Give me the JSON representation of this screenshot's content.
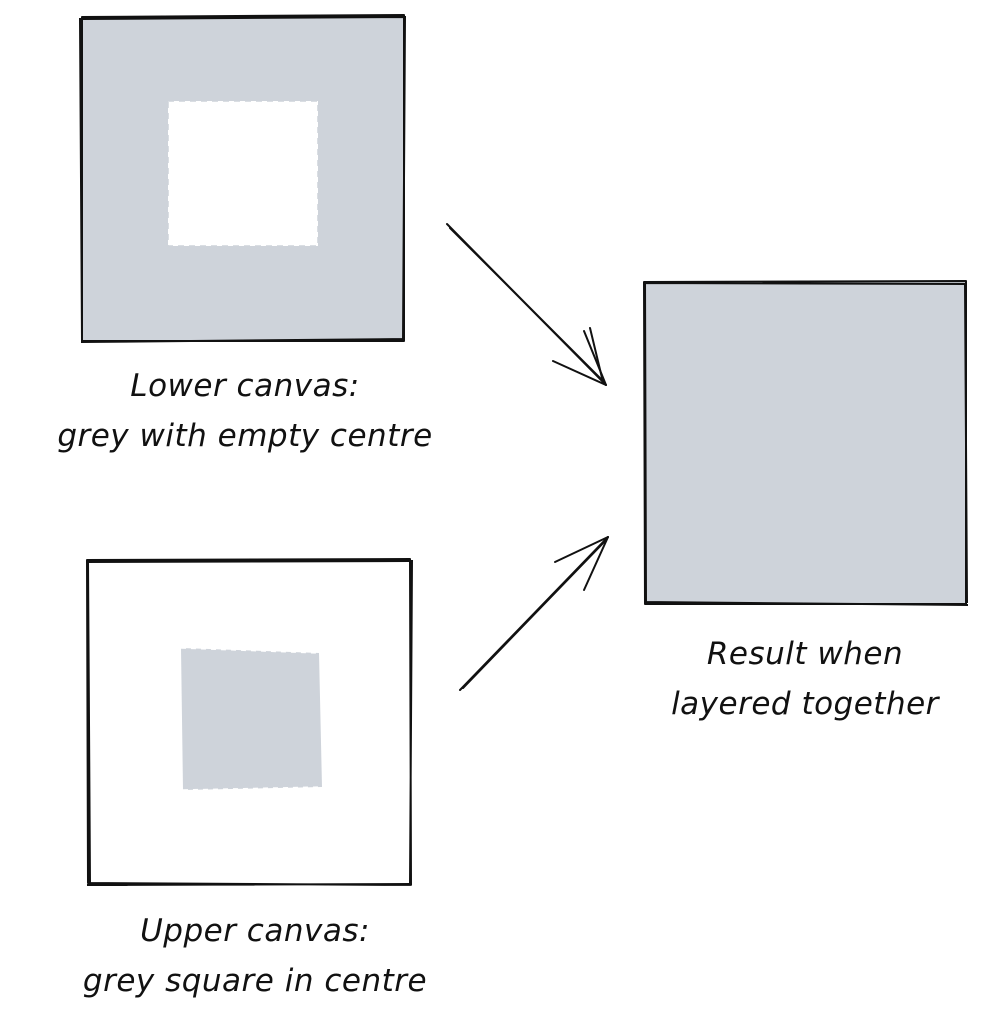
{
  "labels": {
    "lower_canvas": {
      "line1": "Lower canvas:",
      "line2": "grey with empty centre"
    },
    "upper_canvas": {
      "line1": "Upper canvas:",
      "line2": "grey square in centre"
    },
    "result": {
      "line1": "Result when",
      "line2": "layered together"
    }
  },
  "colors": {
    "fill_grey": "#ced3da",
    "stroke": "#111111",
    "background": "#ffffff"
  }
}
